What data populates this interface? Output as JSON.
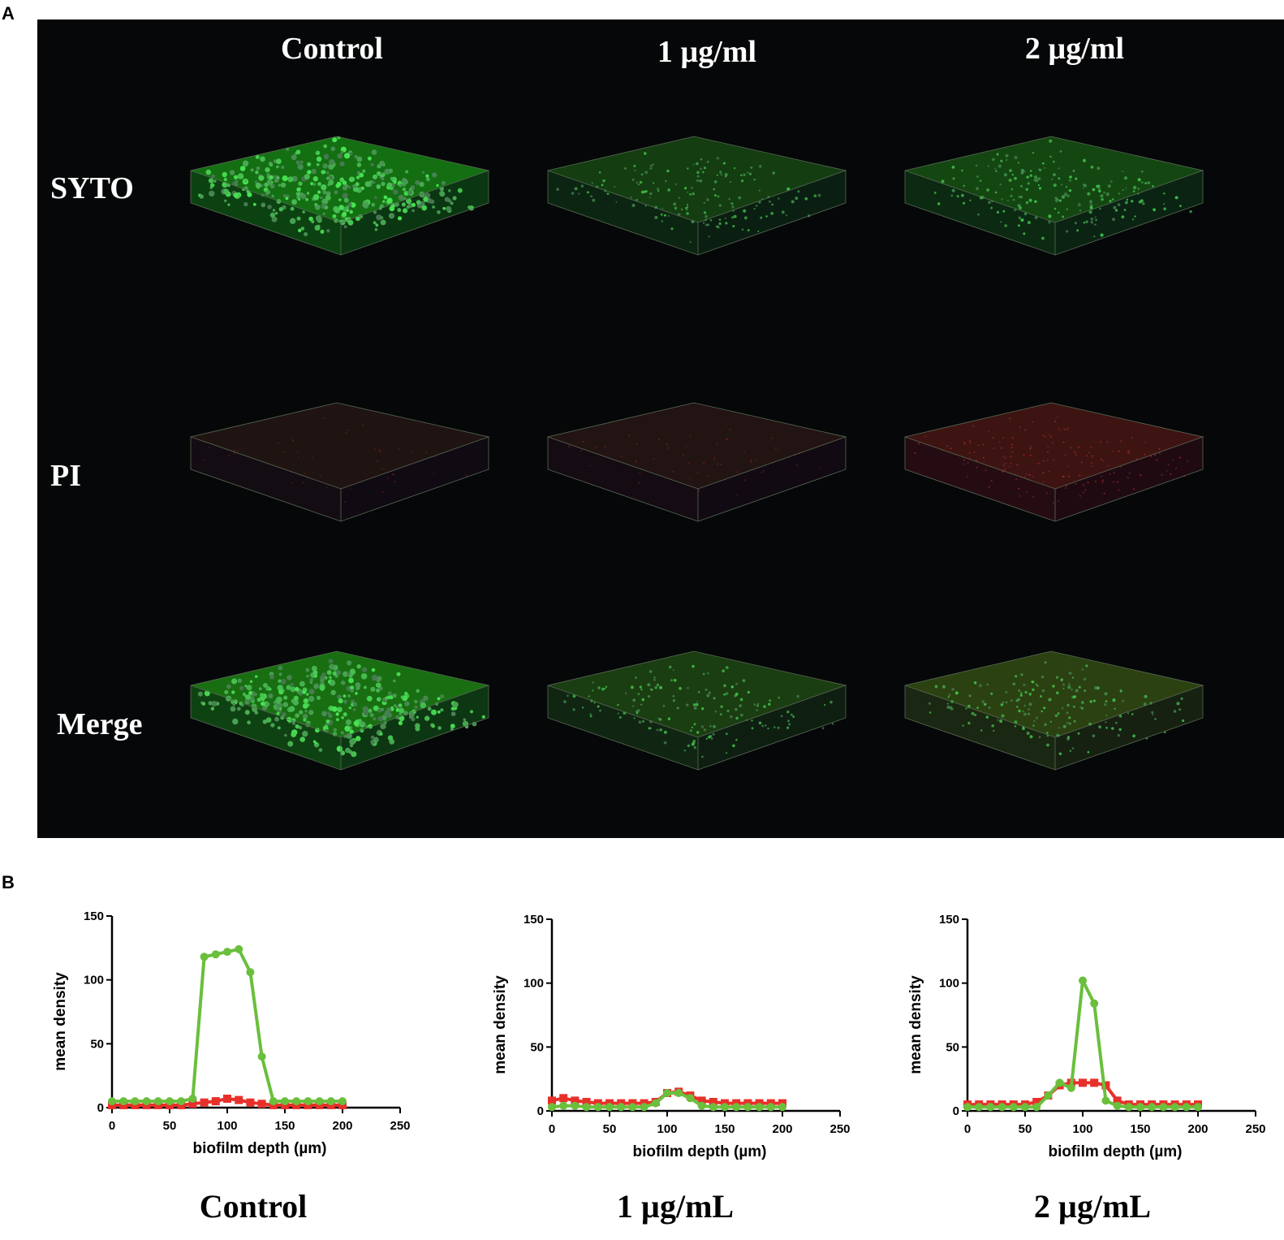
{
  "panel_a": {
    "letter": "A",
    "columns": [
      "Control",
      "1 µg/ml",
      "2 µg/ml"
    ],
    "rows": [
      "SYTO",
      "PI",
      "Merge"
    ],
    "images": [
      {
        "row": "SYTO",
        "column": "Control",
        "green_level": 1.0,
        "red_level": 0.0
      },
      {
        "row": "SYTO",
        "column": "1 µg/ml",
        "green_level": 0.45,
        "red_level": 0.0
      },
      {
        "row": "SYTO",
        "column": "2 µg/ml",
        "green_level": 0.55,
        "red_level": 0.0
      },
      {
        "row": "PI",
        "column": "Control",
        "green_level": 0.0,
        "red_level": 0.12
      },
      {
        "row": "PI",
        "column": "1 µg/ml",
        "green_level": 0.0,
        "red_level": 0.15
      },
      {
        "row": "PI",
        "column": "2 µg/ml",
        "green_level": 0.0,
        "red_level": 0.45
      },
      {
        "row": "Merge",
        "column": "Control",
        "green_level": 1.0,
        "red_level": 0.05
      },
      {
        "row": "Merge",
        "column": "1 µg/ml",
        "green_level": 0.45,
        "red_level": 0.08
      },
      {
        "row": "Merge",
        "column": "2 µg/ml",
        "green_level": 0.5,
        "red_level": 0.25
      }
    ],
    "colors": {
      "background": "#050708",
      "green": "#3ddc4a",
      "red": "#c0202a",
      "box_edge": "#5a6a55"
    }
  },
  "panel_b": {
    "letter": "B",
    "colors": {
      "green": "#6abf3c",
      "red": "#e8302a"
    }
  },
  "chart_data": [
    {
      "type": "line",
      "condition_label": "Control",
      "xlabel": "biofilm depth (µm)",
      "ylabel": "mean density",
      "xlim": [
        0,
        250
      ],
      "ylim": [
        0,
        150
      ],
      "xticks": [
        "0",
        "50",
        "100",
        "150",
        "200",
        "250"
      ],
      "yticks": [
        "0",
        "50",
        "100",
        "150"
      ],
      "series": [
        {
          "color": "#e8302a",
          "marker": "square",
          "x": [
            0,
            10,
            20,
            30,
            40,
            50,
            60,
            70,
            80,
            90,
            100,
            110,
            120,
            130,
            140,
            150,
            160,
            170,
            180,
            190,
            200
          ],
          "y": [
            2,
            2,
            2,
            2,
            2,
            2,
            2,
            3,
            4,
            5,
            7,
            6,
            4,
            3,
            2,
            2,
            2,
            2,
            2,
            2,
            2
          ]
        },
        {
          "color": "#6abf3c",
          "marker": "circle",
          "x": [
            0,
            10,
            20,
            30,
            40,
            50,
            60,
            70,
            80,
            90,
            100,
            110,
            120,
            130,
            140,
            150,
            160,
            170,
            180,
            190,
            200
          ],
          "y": [
            5,
            5,
            5,
            5,
            5,
            5,
            5,
            7,
            118,
            120,
            122,
            124,
            106,
            40,
            5,
            5,
            5,
            5,
            5,
            5,
            5
          ]
        }
      ]
    },
    {
      "type": "line",
      "condition_label": "1 µg/mL",
      "xlabel": "biofilm depth (µm)",
      "ylabel": "mean density",
      "xlim": [
        0,
        250
      ],
      "ylim": [
        0,
        150
      ],
      "xticks": [
        "0",
        "50",
        "100",
        "150",
        "200",
        "250"
      ],
      "yticks": [
        "0",
        "50",
        "100",
        "150"
      ],
      "series": [
        {
          "color": "#e8302a",
          "marker": "square",
          "x": [
            0,
            10,
            20,
            30,
            40,
            50,
            60,
            70,
            80,
            90,
            100,
            110,
            120,
            130,
            140,
            150,
            160,
            170,
            180,
            190,
            200
          ],
          "y": [
            8,
            10,
            8,
            7,
            6,
            6,
            6,
            6,
            6,
            7,
            14,
            15,
            12,
            8,
            7,
            6,
            6,
            6,
            6,
            6,
            6
          ]
        },
        {
          "color": "#6abf3c",
          "marker": "circle",
          "x": [
            0,
            10,
            20,
            30,
            40,
            50,
            60,
            70,
            80,
            90,
            100,
            110,
            120,
            130,
            140,
            150,
            160,
            170,
            180,
            190,
            200
          ],
          "y": [
            3,
            4,
            4,
            3,
            3,
            3,
            3,
            3,
            3,
            6,
            14,
            14,
            10,
            4,
            3,
            3,
            3,
            3,
            3,
            3,
            3
          ]
        }
      ]
    },
    {
      "type": "line",
      "condition_label": "2 µg/mL",
      "xlabel": "biofilm depth (µm)",
      "ylabel": "mean density",
      "xlim": [
        0,
        250
      ],
      "ylim": [
        0,
        150
      ],
      "xticks": [
        "0",
        "50",
        "100",
        "150",
        "200",
        "250"
      ],
      "yticks": [
        "0",
        "50",
        "100",
        "150"
      ],
      "series": [
        {
          "color": "#e8302a",
          "marker": "square",
          "x": [
            0,
            10,
            20,
            30,
            40,
            50,
            60,
            70,
            80,
            90,
            100,
            110,
            120,
            130,
            140,
            150,
            160,
            170,
            180,
            190,
            200
          ],
          "y": [
            5,
            5,
            5,
            5,
            5,
            5,
            7,
            12,
            20,
            22,
            22,
            22,
            20,
            8,
            5,
            5,
            5,
            5,
            5,
            5,
            5
          ]
        },
        {
          "color": "#6abf3c",
          "marker": "circle",
          "x": [
            0,
            10,
            20,
            30,
            40,
            50,
            60,
            70,
            80,
            90,
            100,
            110,
            120,
            130,
            140,
            150,
            160,
            170,
            180,
            190,
            200
          ],
          "y": [
            3,
            3,
            3,
            3,
            3,
            3,
            3,
            12,
            22,
            18,
            102,
            84,
            8,
            4,
            3,
            3,
            3,
            3,
            3,
            3,
            3
          ]
        }
      ]
    }
  ]
}
